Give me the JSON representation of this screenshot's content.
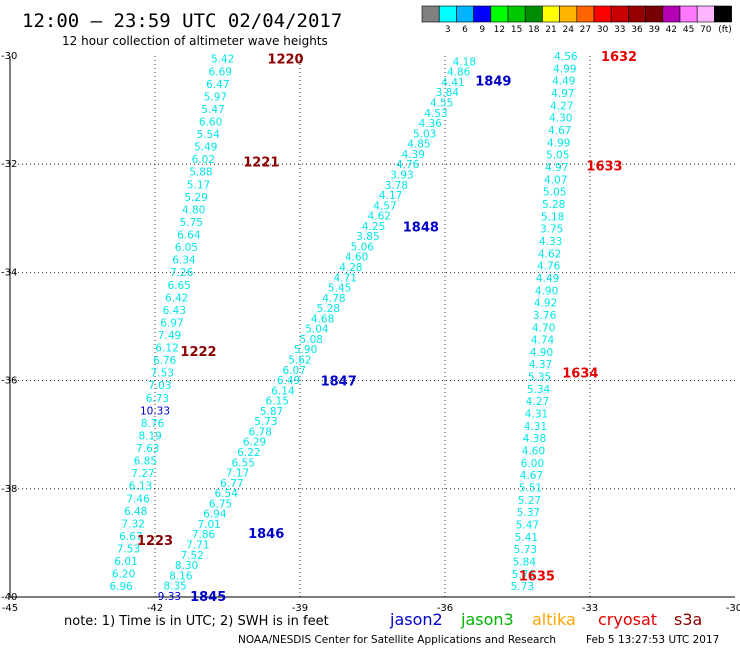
{
  "header": {
    "title": "12:00 – 23:59 UTC 02/04/2017",
    "subtitle": "12 hour collection of altimeter wave heights"
  },
  "color_scale": {
    "colors": [
      "#808080",
      "#00ffff",
      "#00b4ff",
      "#0000ff",
      "#00ff00",
      "#00c800",
      "#008c00",
      "#ffff00",
      "#ffb400",
      "#ff6400",
      "#ff0000",
      "#c80000",
      "#960000",
      "#780000",
      "#b400b4",
      "#ff78ff",
      "#ffb4ff",
      "#000000"
    ],
    "labels": [
      "3",
      "6",
      "9",
      "12",
      "15",
      "18",
      "21",
      "24",
      "27",
      "30",
      "33",
      "36",
      "39",
      "42",
      "45",
      "70"
    ],
    "unit": "(ft)"
  },
  "axes": {
    "x_ticks": [
      "-45",
      "-42",
      "-39",
      "-36",
      "-33",
      "-30"
    ],
    "y_ticks": [
      "-30",
      "-32",
      "-34",
      "-36",
      "-38",
      "-40"
    ]
  },
  "chart_data": {
    "type": "scatter",
    "xlim": [
      -45,
      -30
    ],
    "ylim": [
      -40,
      -30
    ],
    "grid": true,
    "series": [
      {
        "name": "jason2",
        "color": "#0000cc",
        "passes": [
          {
            "time": "1845",
            "time_lon": -40.9,
            "time_lat": -39.98
          },
          {
            "time": "1846",
            "time_lon": -39.7,
            "time_lat": -38.82
          },
          {
            "time": "1847",
            "time_lon": -38.2,
            "time_lat": -36.0
          },
          {
            "time": "1848",
            "time_lon": -36.5,
            "time_lat": -33.15
          },
          {
            "time": "1849",
            "time_lon": -35.0,
            "time_lat": -30.45
          }
        ],
        "tracks": [
          {
            "lon_start": -41.7,
            "lat_start": -39.98,
            "lon_end": -35.6,
            "lat_end": -30.1,
            "values": [
              "9.33",
              "8.35",
              "8.16",
              "8.30",
              "7.52",
              "7.71",
              "7.86",
              "7.01",
              "6.94",
              "6.75",
              "6.54",
              "6.77",
              "7.17",
              "6.55",
              "6.22",
              "6.29",
              "6.78",
              "5.73",
              "5.87",
              "6.15",
              "6.14",
              "6.49",
              "6.07",
              "5.62",
              "5.90",
              "5.08",
              "5.04",
              "4.68",
              "5.28",
              "4.78",
              "5.45",
              "4.71",
              "4.28",
              "4.60",
              "5.06",
              "3.85",
              "4.25",
              "4.62",
              "4.57",
              "4.17",
              "3.78",
              "3.93",
              "4.76",
              "4.39",
              "4.85",
              "5.03",
              "4.36",
              "4.53",
              "4.55",
              "3.84",
              "4.41",
              "4.86",
              "4.18"
            ]
          }
        ]
      },
      {
        "name": "jason3",
        "color": "#00b400",
        "passes": []
      },
      {
        "name": "altika",
        "color": "#ffa500",
        "passes": []
      },
      {
        "name": "cryosat",
        "color": "#e60000",
        "passes": [
          {
            "time": "1632",
            "time_lon": -32.4,
            "time_lat": -30.0
          },
          {
            "time": "1633",
            "time_lon": -32.7,
            "time_lat": -32.02
          },
          {
            "time": "1634",
            "time_lon": -33.2,
            "time_lat": -35.85
          },
          {
            "time": "1635",
            "time_lon": -34.1,
            "time_lat": -39.6
          }
        ],
        "tracks": [
          {
            "lon_start": -33.5,
            "lat_start": -30.0,
            "lon_end": -34.4,
            "lat_end": -39.8,
            "values": [
              "4.56",
              "4.99",
              "4.49",
              "4.97",
              "4.27",
              "4.30",
              "4.67",
              "4.99",
              "5.05",
              "4.97",
              "4.07",
              "5.05",
              "5.28",
              "5.18",
              "3.75",
              "4.33",
              "4.62",
              "4.76",
              "4.49",
              "4.90",
              "4.92",
              "3.76",
              "4.70",
              "4.74",
              "4.90",
              "4.37",
              "5.35",
              "5.34",
              "4.27",
              "4.31",
              "4.31",
              "4.38",
              "4.60",
              "6.00",
              "4.67",
              "5.51",
              "5.27",
              "5.37",
              "5.47",
              "5.41",
              "5.73",
              "5.84",
              "5.76",
              "5.73"
            ]
          }
        ]
      },
      {
        "name": "s3a",
        "color": "#8b0000",
        "passes": [
          {
            "time": "1220",
            "time_lon": -39.3,
            "time_lat": -30.05
          },
          {
            "time": "1221",
            "time_lon": -39.8,
            "time_lat": -31.95
          },
          {
            "time": "1222",
            "time_lon": -41.1,
            "time_lat": -35.45
          },
          {
            "time": "1223",
            "time_lon": -42.0,
            "time_lat": -38.95
          }
        ],
        "tracks": [
          {
            "lon_start": -40.6,
            "lat_start": -30.05,
            "lon_end": -42.7,
            "lat_end": -39.8,
            "values": [
              "5.42",
              "6.69",
              "6.47",
              "5.97",
              "5.47",
              "6.60",
              "5.54",
              "5.49",
              "6.02",
              "5.88",
              "5.17",
              "5.29",
              "4.80",
              "5.75",
              "6.64",
              "6.05",
              "6.34",
              "7.26",
              "6.65",
              "6.42",
              "6.43",
              "6.97",
              "7.49",
              "6.12",
              "6.76",
              "7.53",
              "7.03",
              "6.73",
              "10.33",
              "8.76",
              "8.19",
              "7.63",
              "6.85",
              "7.27",
              "6.13",
              "7.46",
              "6.48",
              "7.32",
              "6.67",
              "7.53",
              "6.01",
              "6.20",
              "6.96"
            ]
          }
        ]
      }
    ]
  },
  "footer": {
    "note": "note:  1) Time is in UTC;  2) SWH is in feet",
    "legend": [
      "jason2",
      "jason3",
      "altika",
      "cryosat",
      "s3a"
    ],
    "credit": "NOAA/NESDIS Center for Satellite Applications and Research",
    "timestamp": "Feb  5 13:27:53 UTC 2017"
  }
}
